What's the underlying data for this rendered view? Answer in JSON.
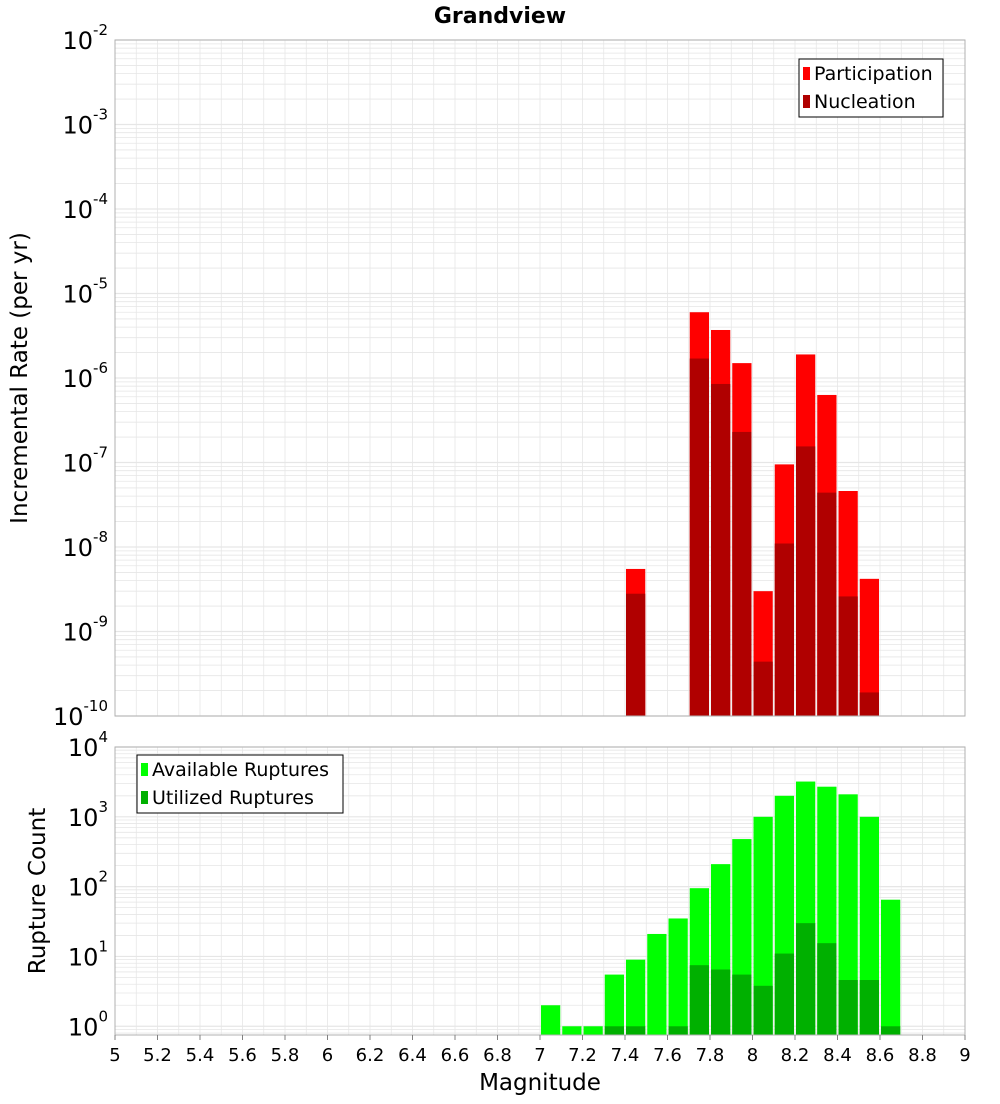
{
  "title": "Grandview",
  "xlabel": "Magnitude",
  "x_ticks": [
    "5",
    "5.2",
    "5.4",
    "5.6",
    "5.8",
    "6",
    "6.2",
    "6.4",
    "6.6",
    "6.8",
    "7",
    "7.2",
    "7.4",
    "7.6",
    "7.8",
    "8",
    "8.2",
    "8.4",
    "8.6",
    "8.8",
    "9"
  ],
  "colors": {
    "participation": "#ff0000",
    "nucleation": "#b00000",
    "available": "#00ff00",
    "utilized": "#00b000",
    "grid": "#e6e6e6"
  },
  "chart_data": [
    {
      "type": "bar",
      "ylabel": "Incremental Rate (per yr)",
      "yscale": "log",
      "ylim": [
        1e-10,
        0.01
      ],
      "xlim": [
        5,
        9
      ],
      "y_ticks": [
        {
          "base": "10",
          "exp": "-10"
        },
        {
          "base": "10",
          "exp": "-9"
        },
        {
          "base": "10",
          "exp": "-8"
        },
        {
          "base": "10",
          "exp": "-7"
        },
        {
          "base": "10",
          "exp": "-6"
        },
        {
          "base": "10",
          "exp": "-5"
        },
        {
          "base": "10",
          "exp": "-4"
        },
        {
          "base": "10",
          "exp": "-3"
        },
        {
          "base": "10",
          "exp": "-2"
        }
      ],
      "legend_position": "top-right",
      "x": [
        7.45,
        7.75,
        7.85,
        7.95,
        8.05,
        8.15,
        8.25,
        8.35,
        8.45,
        8.55
      ],
      "series": [
        {
          "name": "Participation",
          "values": [
            5.5e-09,
            6e-06,
            3.7e-06,
            1.5e-06,
            3e-09,
            9.5e-08,
            1.9e-06,
            6.3e-07,
            4.6e-08,
            4.2e-09
          ]
        },
        {
          "name": "Nucleation",
          "values": [
            2.8e-09,
            1.7e-06,
            8.5e-07,
            2.3e-07,
            4.4e-10,
            1.1e-08,
            1.55e-07,
            4.4e-08,
            2.6e-09,
            1.9e-10
          ]
        }
      ]
    },
    {
      "type": "bar",
      "ylabel": "Rupture Count",
      "yscale": "log",
      "ylim": [
        0.75,
        10000
      ],
      "xlim": [
        5,
        9
      ],
      "y_ticks": [
        {
          "base": "10",
          "exp": "0"
        },
        {
          "base": "10",
          "exp": "1"
        },
        {
          "base": "10",
          "exp": "2"
        },
        {
          "base": "10",
          "exp": "3"
        },
        {
          "base": "10",
          "exp": "4"
        }
      ],
      "legend_position": "top-left",
      "x": [
        7.05,
        7.15,
        7.25,
        7.35,
        7.45,
        7.55,
        7.65,
        7.75,
        7.85,
        7.95,
        8.05,
        8.15,
        8.25,
        8.35,
        8.45,
        8.55,
        8.65
      ],
      "series": [
        {
          "name": "Available Ruptures",
          "values": [
            2,
            1,
            1,
            5.5,
            9,
            21,
            35,
            95,
            210,
            480,
            1000,
            2000,
            3200,
            2700,
            2100,
            1000,
            65
          ]
        },
        {
          "name": "Utilized Ruptures",
          "values": [
            0,
            0,
            0,
            1,
            1,
            0,
            1,
            7.5,
            6.5,
            5.5,
            3.8,
            11,
            30,
            15.5,
            4.6,
            4.6,
            1
          ]
        }
      ]
    }
  ]
}
